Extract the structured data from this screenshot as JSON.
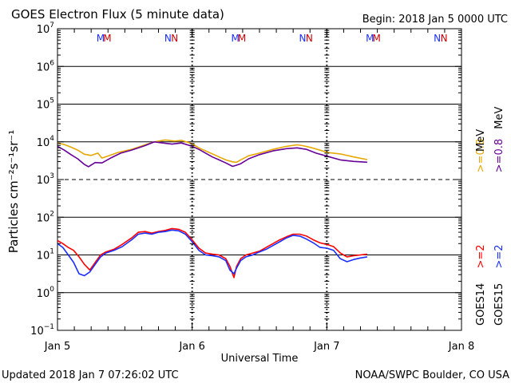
{
  "header": {
    "title": "GOES Electron Flux (5 minute data)",
    "begin": "Begin: 2018 Jan 5 0000 UTC"
  },
  "footer": {
    "updated": "Updated 2018 Jan  7 07:26:02 UTC",
    "credit": "NOAA/SWPC Boulder, CO USA"
  },
  "legend": {
    "goes14": "GOES14",
    "goes15": "GOES15",
    "g14_high": ">=2",
    "g15_high": ">=2",
    "g14_low": ">=0.8",
    "g15_low": ">=0.8",
    "units": "MeV"
  },
  "markers": {
    "m": "M",
    "n": "N"
  },
  "colors": {
    "goes14_high": "#ff0000",
    "goes15_high": "#1a2fff",
    "goes14_low": "#e6a800",
    "goes15_low": "#660099",
    "marker_m1": "#1a2fff",
    "marker_m2": "#cc0000"
  },
  "chart_data": {
    "type": "line",
    "title": "GOES Electron Flux (5 minute data)",
    "xlabel": "Universal Time",
    "ylabel": "Particles cm⁻²s⁻¹sr⁻¹",
    "x_unit": "days since 2018 Jan 5 0000 UTC",
    "xlim": [
      0,
      3
    ],
    "ylim_log10": [
      -1,
      7
    ],
    "x_ticks": [
      {
        "x": 0,
        "label": "Jan 5"
      },
      {
        "x": 1,
        "label": "Jan 6"
      },
      {
        "x": 2,
        "label": "Jan 7"
      },
      {
        "x": 3,
        "label": "Jan 8"
      }
    ],
    "y_ticks": [
      {
        "exp": -1,
        "label": "10",
        "sup": "−1"
      },
      {
        "exp": 0,
        "label": "10",
        "sup": "0"
      },
      {
        "exp": 1,
        "label": "10",
        "sup": "1"
      },
      {
        "exp": 2,
        "label": "10",
        "sup": "2"
      },
      {
        "exp": 3,
        "label": "10",
        "sup": "3"
      },
      {
        "exp": 4,
        "label": "10",
        "sup": "4"
      },
      {
        "exp": 5,
        "label": "10",
        "sup": "5"
      },
      {
        "exp": 6,
        "label": "10",
        "sup": "6"
      },
      {
        "exp": 7,
        "label": "10",
        "sup": "7"
      }
    ],
    "gridlines_log10": [
      0,
      1,
      2,
      4,
      5,
      6
    ],
    "threshold_log10": 3,
    "day_boundaries": [
      1,
      2
    ],
    "magnetopause_markers": [
      {
        "x": 0.32,
        "label": "M",
        "series": "GOES15"
      },
      {
        "x": 0.37,
        "label": "M",
        "series": "GOES14"
      },
      {
        "x": 0.82,
        "label": "N",
        "series": "GOES15"
      },
      {
        "x": 0.87,
        "label": "N",
        "series": "GOES14"
      },
      {
        "x": 1.32,
        "label": "M",
        "series": "GOES15"
      },
      {
        "x": 1.37,
        "label": "M",
        "series": "GOES14"
      },
      {
        "x": 1.82,
        "label": "N",
        "series": "GOES15"
      },
      {
        "x": 1.87,
        "label": "N",
        "series": "GOES14"
      },
      {
        "x": 2.32,
        "label": "M",
        "series": "GOES15"
      },
      {
        "x": 2.37,
        "label": "M",
        "series": "GOES14"
      },
      {
        "x": 2.82,
        "label": "N",
        "series": "GOES15"
      },
      {
        "x": 2.87,
        "label": "N",
        "series": "GOES14"
      }
    ],
    "series": [
      {
        "name": "GOES14 >=0.8 MeV",
        "color": "#e6a800",
        "x": [
          0.0,
          0.05,
          0.1,
          0.15,
          0.2,
          0.25,
          0.3,
          0.33,
          0.38,
          0.45,
          0.55,
          0.65,
          0.72,
          0.8,
          0.87,
          0.92,
          1.0,
          1.05,
          1.1,
          1.15,
          1.2,
          1.25,
          1.3,
          1.33,
          1.36,
          1.42,
          1.5,
          1.6,
          1.7,
          1.78,
          1.82,
          1.88,
          1.95,
          2.0,
          2.1,
          2.2,
          2.3
        ],
        "log10": [
          3.97,
          3.93,
          3.86,
          3.78,
          3.67,
          3.64,
          3.7,
          3.57,
          3.63,
          3.72,
          3.8,
          3.92,
          4.0,
          4.05,
          4.02,
          4.04,
          3.95,
          3.84,
          3.76,
          3.68,
          3.6,
          3.52,
          3.47,
          3.46,
          3.52,
          3.63,
          3.7,
          3.8,
          3.88,
          3.92,
          3.9,
          3.85,
          3.78,
          3.72,
          3.68,
          3.6,
          3.53
        ]
      },
      {
        "name": "GOES15 >=0.8 MeV",
        "color": "#660099",
        "x": [
          0.0,
          0.05,
          0.1,
          0.15,
          0.2,
          0.23,
          0.28,
          0.33,
          0.4,
          0.47,
          0.55,
          0.65,
          0.72,
          0.8,
          0.85,
          0.92,
          1.0,
          1.05,
          1.1,
          1.15,
          1.2,
          1.25,
          1.3,
          1.33,
          1.36,
          1.42,
          1.5,
          1.6,
          1.7,
          1.78,
          1.85,
          1.92,
          2.0,
          2.1,
          2.2,
          2.3
        ],
        "log10": [
          3.88,
          3.78,
          3.66,
          3.55,
          3.4,
          3.34,
          3.45,
          3.44,
          3.58,
          3.7,
          3.78,
          3.9,
          4.0,
          3.96,
          3.94,
          3.97,
          3.88,
          3.8,
          3.7,
          3.6,
          3.52,
          3.44,
          3.35,
          3.38,
          3.42,
          3.55,
          3.66,
          3.76,
          3.82,
          3.84,
          3.8,
          3.7,
          3.62,
          3.52,
          3.48,
          3.46
        ]
      },
      {
        "name": "GOES14 >=2 MeV",
        "color": "#ff0000",
        "x": [
          0.0,
          0.04,
          0.08,
          0.12,
          0.16,
          0.2,
          0.24,
          0.28,
          0.32,
          0.36,
          0.42,
          0.48,
          0.55,
          0.6,
          0.65,
          0.7,
          0.75,
          0.8,
          0.85,
          0.9,
          0.95,
          1.0,
          1.05,
          1.1,
          1.15,
          1.2,
          1.25,
          1.28,
          1.31,
          1.33,
          1.36,
          1.4,
          1.45,
          1.5,
          1.55,
          1.6,
          1.65,
          1.7,
          1.75,
          1.8,
          1.85,
          1.9,
          1.95,
          2.0,
          2.05,
          2.1,
          2.15,
          2.2,
          2.25,
          2.3
        ],
        "log10": [
          1.38,
          1.3,
          1.2,
          1.12,
          0.95,
          0.75,
          0.6,
          0.8,
          1.0,
          1.08,
          1.15,
          1.28,
          1.45,
          1.6,
          1.62,
          1.58,
          1.62,
          1.65,
          1.7,
          1.68,
          1.6,
          1.4,
          1.18,
          1.05,
          1.02,
          1.0,
          0.9,
          0.7,
          0.4,
          0.7,
          0.9,
          1.0,
          1.05,
          1.1,
          1.2,
          1.3,
          1.4,
          1.48,
          1.55,
          1.55,
          1.5,
          1.4,
          1.32,
          1.28,
          1.22,
          1.05,
          0.95,
          0.98,
          1.0,
          1.02
        ]
      },
      {
        "name": "GOES15 >=2 MeV",
        "color": "#1a2fff",
        "x": [
          0.0,
          0.04,
          0.08,
          0.12,
          0.16,
          0.2,
          0.24,
          0.28,
          0.32,
          0.36,
          0.42,
          0.48,
          0.55,
          0.6,
          0.65,
          0.7,
          0.75,
          0.8,
          0.85,
          0.9,
          0.95,
          1.0,
          1.05,
          1.1,
          1.15,
          1.2,
          1.25,
          1.28,
          1.31,
          1.33,
          1.36,
          1.4,
          1.45,
          1.5,
          1.55,
          1.6,
          1.65,
          1.7,
          1.75,
          1.8,
          1.85,
          1.9,
          1.95,
          2.0,
          2.05,
          2.1,
          2.15,
          2.2,
          2.25,
          2.3
        ],
        "log10": [
          1.3,
          1.2,
          1.0,
          0.8,
          0.5,
          0.45,
          0.55,
          0.75,
          0.95,
          1.05,
          1.12,
          1.22,
          1.4,
          1.55,
          1.58,
          1.55,
          1.6,
          1.62,
          1.66,
          1.64,
          1.55,
          1.35,
          1.12,
          1.0,
          0.98,
          0.95,
          0.85,
          0.6,
          0.5,
          0.65,
          0.85,
          0.95,
          1.0,
          1.08,
          1.15,
          1.25,
          1.35,
          1.45,
          1.52,
          1.5,
          1.42,
          1.32,
          1.2,
          1.18,
          1.12,
          0.9,
          0.82,
          0.88,
          0.92,
          0.95
        ]
      }
    ]
  }
}
